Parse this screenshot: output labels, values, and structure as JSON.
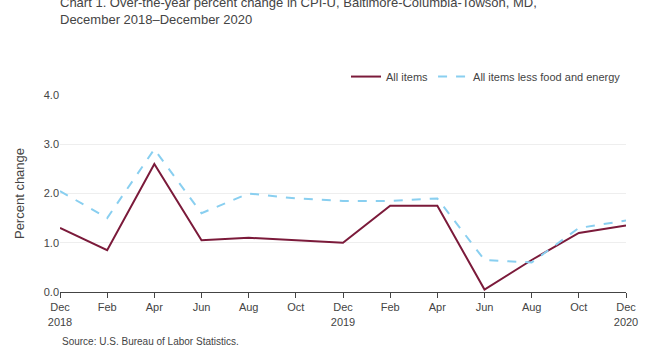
{
  "chart_data": {
    "type": "line",
    "title": "Chart 1. Over-the-year percent change in CPI-U, Baltimore-Columbia-Towson, MD,\nDecember 2018–December 2020",
    "y_label": "Percent change",
    "source": "Source: U.S. Bureau of Labor Statistics.",
    "categories": [
      "Dec\n2018",
      "Feb",
      "Apr",
      "Jun",
      "Aug",
      "Oct",
      "Dec\n2019",
      "Feb",
      "Apr",
      "Jun",
      "Aug",
      "Oct",
      "Dec\n2020"
    ],
    "series": [
      {
        "name": "All items",
        "color": "#7B1A3A",
        "line_style": "solid",
        "values": [
          1.3,
          0.85,
          2.6,
          1.05,
          1.1,
          1.05,
          1.0,
          1.75,
          1.75,
          0.05,
          0.65,
          1.2,
          1.35
        ]
      },
      {
        "name": "All items less food and energy",
        "color": "#89CFF0",
        "line_style": "dashed",
        "values": [
          2.05,
          1.5,
          2.9,
          1.6,
          2.0,
          1.9,
          1.85,
          1.85,
          1.9,
          0.65,
          0.6,
          1.3,
          1.45
        ]
      }
    ],
    "ylim": [
      0.0,
      4.0
    ],
    "yticks": [
      {
        "value": 0.0,
        "label": "0.0"
      },
      {
        "value": 1.0,
        "label": "1.0"
      },
      {
        "value": 2.0,
        "label": "2.0"
      },
      {
        "value": 3.0,
        "label": "3.0"
      },
      {
        "value": 4.0,
        "label": "4.0"
      }
    ],
    "grid": true,
    "legend": "upper right"
  }
}
